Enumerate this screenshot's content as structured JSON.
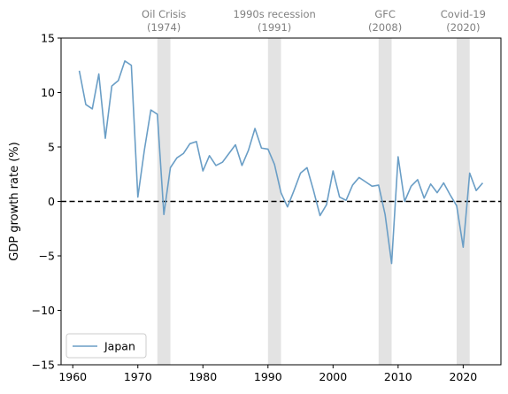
{
  "chart_data": {
    "type": "line",
    "ylabel": "GDP growth rate (%)",
    "xlabel": "",
    "xlim": [
      1958.2,
      2025.8
    ],
    "ylim": [
      -15,
      15
    ],
    "xticks": [
      1960,
      1970,
      1980,
      1990,
      2000,
      2010,
      2020
    ],
    "yticks": [
      -15,
      -10,
      -5,
      0,
      5,
      10,
      15
    ],
    "ytick_labels": [
      "−15",
      "−10",
      "−5",
      "0",
      "5",
      "10",
      "15"
    ],
    "grid": false,
    "legend_position": "lower-left",
    "baseline": {
      "y": 0,
      "style": "dashed",
      "color": "#000000"
    },
    "series": [
      {
        "name": "Japan",
        "color": "#6a9ec6",
        "x": [
          1961,
          1962,
          1963,
          1964,
          1965,
          1966,
          1967,
          1968,
          1969,
          1970,
          1971,
          1972,
          1973,
          1974,
          1975,
          1976,
          1977,
          1978,
          1979,
          1980,
          1981,
          1982,
          1983,
          1984,
          1985,
          1986,
          1987,
          1988,
          1989,
          1990,
          1991,
          1992,
          1993,
          1994,
          1995,
          1996,
          1997,
          1998,
          1999,
          2000,
          2001,
          2002,
          2003,
          2004,
          2005,
          2006,
          2007,
          2008,
          2009,
          2010,
          2011,
          2012,
          2013,
          2014,
          2015,
          2016,
          2017,
          2018,
          2019,
          2020,
          2021,
          2022,
          2023
        ],
        "y": [
          12.0,
          8.9,
          8.5,
          11.7,
          5.8,
          10.6,
          11.1,
          12.9,
          12.5,
          0.4,
          4.7,
          8.4,
          8.0,
          -1.2,
          3.1,
          4.0,
          4.4,
          5.3,
          5.5,
          2.8,
          4.2,
          3.3,
          3.6,
          4.4,
          5.2,
          3.3,
          4.7,
          6.7,
          4.9,
          4.8,
          3.4,
          0.8,
          -0.5,
          1.0,
          2.6,
          3.1,
          1.0,
          -1.3,
          -0.3,
          2.8,
          0.4,
          0.1,
          1.5,
          2.2,
          1.8,
          1.4,
          1.5,
          -1.2,
          -5.7,
          4.1,
          0.0,
          1.4,
          2.0,
          0.3,
          1.6,
          0.8,
          1.7,
          0.6,
          -0.4,
          -4.2,
          2.6,
          1.0,
          1.7
        ]
      }
    ],
    "events": [
      {
        "line1": "Oil Crisis",
        "line2": "(1974)",
        "start": 1973,
        "end": 1975,
        "color": "#e3e3e3"
      },
      {
        "line1": "1990s recession",
        "line2": "(1991)",
        "start": 1990,
        "end": 1992,
        "color": "#e3e3e3"
      },
      {
        "line1": "GFC",
        "line2": "(2008)",
        "start": 2007,
        "end": 2009,
        "color": "#e3e3e3"
      },
      {
        "line1": "Covid-19",
        "line2": "(2020)",
        "start": 2019,
        "end": 2021,
        "color": "#e3e3e3"
      }
    ]
  }
}
